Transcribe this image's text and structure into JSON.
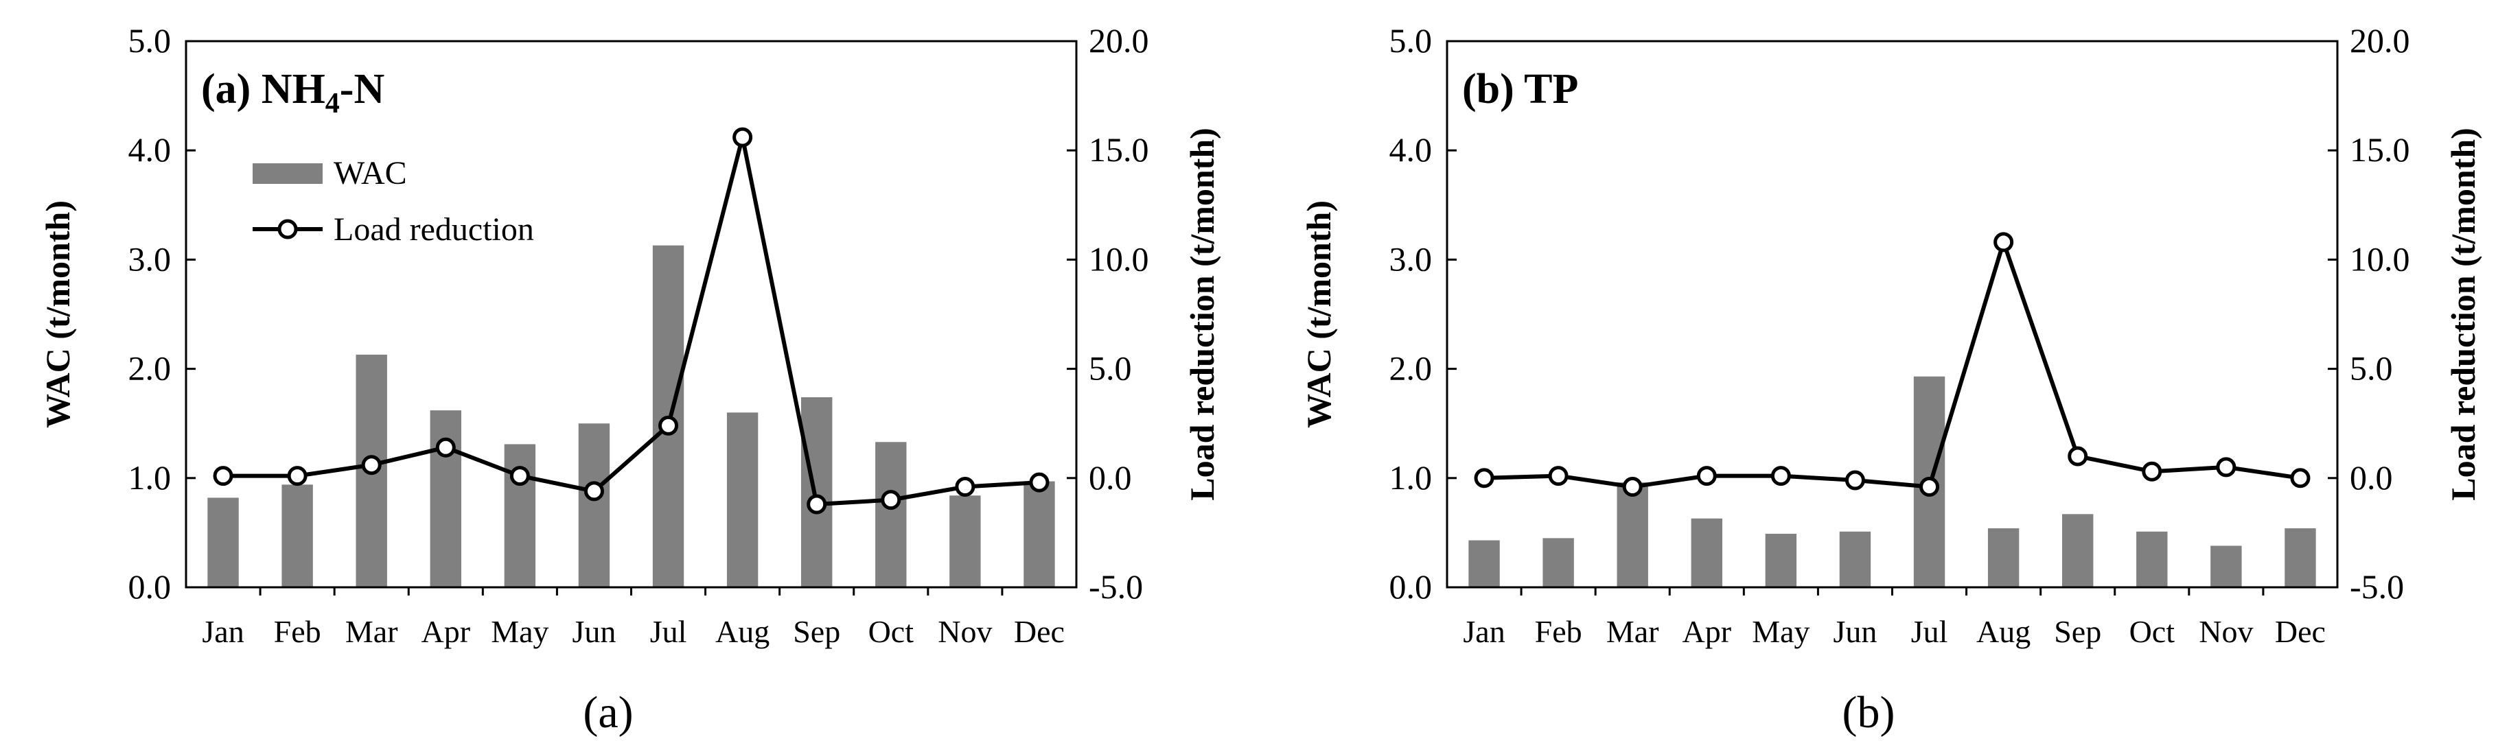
{
  "colors": {
    "bar": "#808080",
    "line": "#000000",
    "marker_fill": "#ffffff",
    "axis": "#000000"
  },
  "chart_data": [
    {
      "type": "bar+line",
      "title": "(a) NH",
      "title_sub": "4",
      "title_suffix": "-N",
      "panel_label": "(a)",
      "categories": [
        "Jan",
        "Feb",
        "Mar",
        "Apr",
        "May",
        "Jun",
        "Jul",
        "Aug",
        "Sep",
        "Oct",
        "Nov",
        "Dec"
      ],
      "series": [
        {
          "name": "WAC",
          "kind": "bar",
          "axis": "left",
          "values": [
            0.82,
            0.94,
            2.13,
            1.62,
            1.31,
            1.5,
            3.13,
            1.6,
            1.74,
            1.33,
            0.84,
            0.97
          ]
        },
        {
          "name": "Load reduction",
          "kind": "line",
          "axis": "right",
          "values": [
            0.1,
            0.1,
            0.6,
            1.4,
            0.1,
            -0.6,
            2.4,
            15.6,
            -1.2,
            -1.0,
            -0.4,
            -0.2
          ]
        }
      ],
      "ylabel": "WAC (t/month)",
      "y2label": "Load reduction (t/month)",
      "ylim": [
        0,
        5
      ],
      "y2lim": [
        -5,
        20
      ],
      "yticks": [
        "0.0",
        "1.0",
        "2.0",
        "3.0",
        "4.0",
        "5.0"
      ],
      "y2ticks": [
        "-5.0",
        "0.0",
        "5.0",
        "10.0",
        "15.0",
        "20.0"
      ],
      "legend": "top-left",
      "grid": false
    },
    {
      "type": "bar+line",
      "title": "(b) TP",
      "panel_label": "(b)",
      "categories": [
        "Jan",
        "Feb",
        "Mar",
        "Apr",
        "May",
        "Jun",
        "Jul",
        "Aug",
        "Sep",
        "Oct",
        "Nov",
        "Dec"
      ],
      "series": [
        {
          "name": "WAC",
          "kind": "bar",
          "axis": "left",
          "values": [
            0.43,
            0.45,
            0.96,
            0.63,
            0.49,
            0.51,
            1.93,
            0.54,
            0.67,
            0.51,
            0.38,
            0.54
          ]
        },
        {
          "name": "Load reduction",
          "kind": "line",
          "axis": "right",
          "values": [
            0.0,
            0.1,
            -0.4,
            0.1,
            0.1,
            -0.1,
            -0.4,
            10.8,
            1.0,
            0.3,
            0.5,
            0.0
          ]
        }
      ],
      "ylabel": "WAC (t/month)",
      "y2label": "Load reduction (t/month)",
      "ylim": [
        0,
        5
      ],
      "y2lim": [
        -5,
        20
      ],
      "yticks": [
        "0.0",
        "1.0",
        "2.0",
        "3.0",
        "4.0",
        "5.0"
      ],
      "y2ticks": [
        "-5.0",
        "0.0",
        "5.0",
        "10.0",
        "15.0",
        "20.0"
      ],
      "grid": false
    }
  ]
}
